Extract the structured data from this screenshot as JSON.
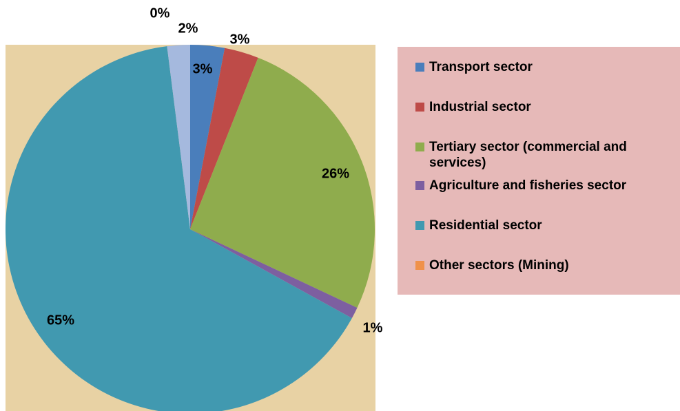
{
  "chart_data": {
    "type": "pie",
    "categories": [
      "Transport sector",
      "Industrial sector",
      "Tertiary sector (commercial and services)",
      "Agriculture and fisheries sector",
      "Residential sector",
      "Other sectors (Mining)",
      null
    ],
    "values": [
      3,
      3,
      26,
      1,
      65,
      0,
      2
    ],
    "value_labels": [
      "3%",
      "3%",
      "26%",
      "1%",
      "65%",
      "0%",
      "2%"
    ],
    "colors": [
      "#4a7ebb",
      "#be4b48",
      "#8fac4d",
      "#7d5fa0",
      "#4199b0",
      "#f0914a",
      "#a5b9de"
    ],
    "legend": "right"
  }
}
